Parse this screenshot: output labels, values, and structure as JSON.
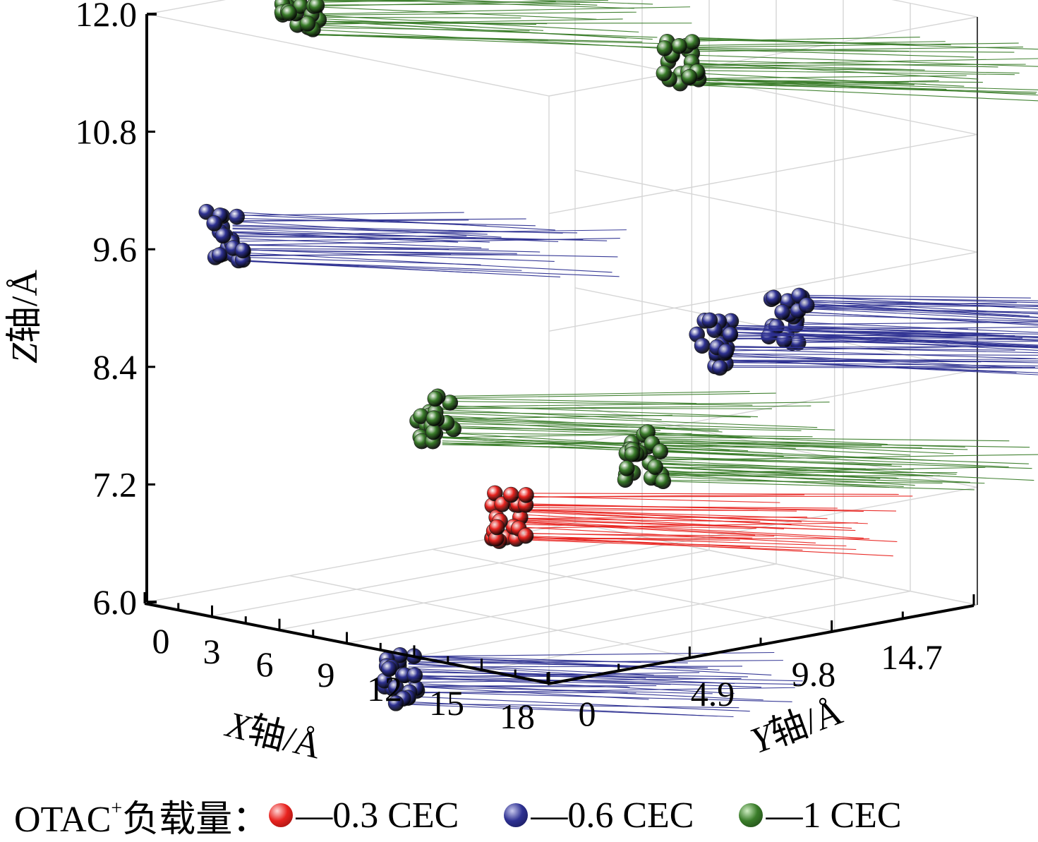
{
  "chart_data": {
    "type": "scatter",
    "projection": "3d",
    "title": "",
    "axes": {
      "x": {
        "label_var": "X",
        "label_rest": "轴/Å",
        "ticks": [
          "0",
          "3",
          "6",
          "9",
          "12",
          "15",
          "18"
        ],
        "range": [
          0,
          18
        ]
      },
      "y": {
        "label_var": "Y",
        "label_rest": "轴/Å",
        "ticks": [
          "0",
          "4.9",
          "9.8",
          "14.7"
        ],
        "range": [
          0,
          14.7
        ]
      },
      "z": {
        "label_var": "Z",
        "label_rest": "轴/Å",
        "ticks": [
          "6.0",
          "7.2",
          "8.4",
          "9.6",
          "10.8",
          "12.0"
        ],
        "range": [
          6.0,
          12.0
        ]
      }
    },
    "grid": true,
    "legend": {
      "title": "OTAC",
      "title_sup": "+",
      "title_rest": "负载量：",
      "placement": "bottom"
    },
    "series": [
      {
        "name": "—0.3 CEC",
        "color": "#e8231f",
        "molecules": [
          {
            "x": 15,
            "y": 1.0,
            "z": 7.5
          }
        ]
      },
      {
        "name": "—0.6 CEC",
        "color": "#2e3192",
        "molecules": [
          {
            "x": 3,
            "y": 0.4,
            "z": 9.85
          },
          {
            "x": 15,
            "y": 10.5,
            "z": 9.0
          },
          {
            "x": 6,
            "y": 14.8,
            "z": 8.1
          },
          {
            "x": 11,
            "y": 0.3,
            "z": 5.7
          }
        ]
      },
      {
        "name": "—1 CEC",
        "color": "#3a7d2a",
        "molecules": [
          {
            "x": 3,
            "y": 3.0,
            "z": 12.0
          },
          {
            "x": 9,
            "y": 11.5,
            "z": 11.3
          },
          {
            "x": 9,
            "y": 3.0,
            "z": 8.1
          },
          {
            "x": 4,
            "y": 14.0,
            "z": 6.9
          }
        ]
      }
    ]
  }
}
